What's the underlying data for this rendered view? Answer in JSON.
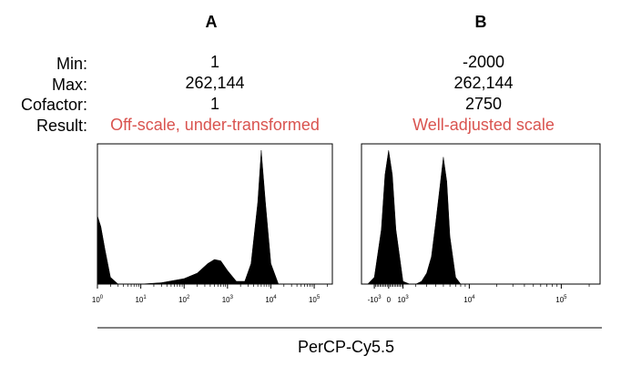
{
  "row_labels": {
    "min": "Min:",
    "max": "Max:",
    "cofactor": "Cofactor:",
    "result": "Result:"
  },
  "panels": [
    {
      "title": "A",
      "min": "1",
      "max": "262,144",
      "cofactor": "1",
      "result": "Off-scale, under-transformed"
    },
    {
      "title": "B",
      "min": "-2000",
      "max": "262,144",
      "cofactor": "2750",
      "result": "Well-adjusted scale"
    }
  ],
  "colors": {
    "result_text": "#d9534f",
    "fill": "#000000"
  },
  "chart_data": [
    {
      "type": "area",
      "panel": "A",
      "xlabel": "PerCP-Cy5.5",
      "xlim": [
        1,
        262144
      ],
      "x_scale": "log",
      "ticks": [
        {
          "value": 1,
          "label": "10^0"
        },
        {
          "value": 10,
          "label": "10^1"
        },
        {
          "value": 100,
          "label": "10^2"
        },
        {
          "value": 1000,
          "label": "10^3"
        },
        {
          "value": 10000,
          "label": "10^4"
        },
        {
          "value": 100000,
          "label": "10^5"
        }
      ],
      "series": [
        {
          "x": [
            1,
            1.2,
            1.5,
            2,
            3,
            10,
            30,
            100,
            200,
            350,
            500,
            700,
            1000,
            1600,
            2500,
            3500,
            5000,
            6000,
            7500,
            10000,
            15000,
            262144
          ],
          "y": [
            0.5,
            0.42,
            0.25,
            0.05,
            0,
            0,
            0.01,
            0.04,
            0.08,
            0.15,
            0.18,
            0.17,
            0.1,
            0.02,
            0.02,
            0.15,
            0.6,
            0.98,
            0.6,
            0.15,
            0,
            0
          ]
        }
      ]
    },
    {
      "type": "area",
      "panel": "B",
      "xlabel": "PerCP-Cy5.5",
      "xlim": [
        -2000,
        262144
      ],
      "x_scale": "arcsinh, cofactor 2750",
      "ticks": [
        {
          "value": -1000,
          "label": "-10^3"
        },
        {
          "value": 0,
          "label": "0"
        },
        {
          "value": 1000,
          "label": "10^3"
        },
        {
          "value": 10000,
          "label": "10^4"
        },
        {
          "value": 100000,
          "label": "10^5"
        }
      ],
      "series": [
        {
          "x": [
            -2000,
            -1500,
            -1000,
            -500,
            -250,
            0,
            250,
            500,
            1000,
            1500,
            2000,
            2500,
            3000,
            3500,
            4000,
            4500,
            5000,
            5500,
            6000,
            7000,
            8000,
            262144
          ],
          "y": [
            0,
            0,
            0.05,
            0.4,
            0.8,
            0.98,
            0.8,
            0.4,
            0.02,
            0,
            0,
            0.02,
            0.08,
            0.2,
            0.45,
            0.7,
            0.93,
            0.75,
            0.35,
            0.05,
            0,
            0
          ]
        }
      ]
    }
  ]
}
